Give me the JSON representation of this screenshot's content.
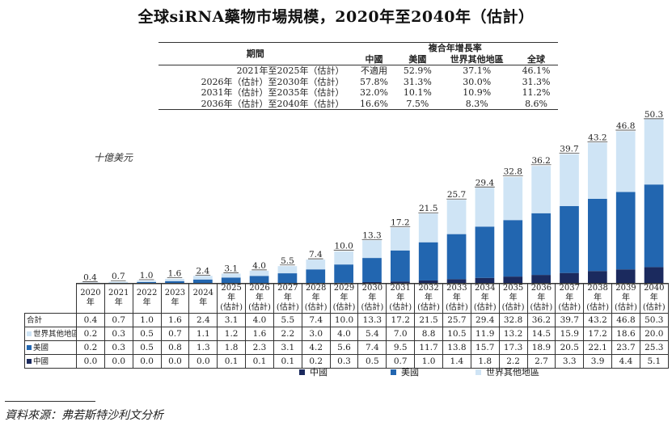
{
  "title": "全球siRNA藥物市場規模，2020年至2040年（估計）",
  "cagr_table": {
    "period_header": "期間",
    "group_header": "複合年增長率",
    "columns": [
      "中國",
      "美國",
      "世界其他地區",
      "全球"
    ],
    "rows": [
      {
        "period": "2021年至2025年（估計）",
        "values": [
          "不適用",
          "52.9%",
          "37.1%",
          "46.1%"
        ]
      },
      {
        "period": "2026年（估計）至2030年（估計）",
        "values": [
          "57.8%",
          "31.3%",
          "30.0%",
          "31.3%"
        ]
      },
      {
        "period": "2031年（估計）至2035年（估計）",
        "values": [
          "32.0%",
          "10.1%",
          "10.9%",
          "11.2%"
        ]
      },
      {
        "period": "2036年（估計）至2040年（估計）",
        "values": [
          "16.6%",
          "7.5%",
          "8.3%",
          "8.6%"
        ]
      }
    ]
  },
  "unit_label": "十億美元",
  "chart_data": {
    "type": "bar",
    "stacked": true,
    "categories": [
      "2020年",
      "2021年",
      "2022年",
      "2023年",
      "2024年",
      "2025年（估計）",
      "2026年（估計）",
      "2027年（估計）",
      "2028年（估計）",
      "2029年（估計）",
      "2030年（估計）",
      "2031年（估計）",
      "2032年（估計）",
      "2033年（估計）",
      "2034年（估計）",
      "2035年（估計）",
      "2036年（估計）",
      "2037年（估計）",
      "2038年（估計）",
      "2039年（估計）",
      "2040年（估計）"
    ],
    "category_lines": [
      [
        "2020年"
      ],
      [
        "2021年"
      ],
      [
        "2022年"
      ],
      [
        "2023年"
      ],
      [
        "2024年"
      ],
      [
        "2025年",
        "(估計)"
      ],
      [
        "2026年",
        "(估計)"
      ],
      [
        "2027年",
        "(估計)"
      ],
      [
        "2028年",
        "(估計)"
      ],
      [
        "2029年",
        "(估計)"
      ],
      [
        "2030年",
        "(估計)"
      ],
      [
        "2031年",
        "(估計)"
      ],
      [
        "2032年",
        "(估計)"
      ],
      [
        "2033年",
        "(估計)"
      ],
      [
        "2034年",
        "(估計)"
      ],
      [
        "2035年",
        "(估計)"
      ],
      [
        "2036年",
        "(估計)"
      ],
      [
        "2037年",
        "(估計)"
      ],
      [
        "2038年",
        "(估計)"
      ],
      [
        "2039年",
        "(估計)"
      ],
      [
        "2040年",
        "(估計)"
      ]
    ],
    "series": [
      {
        "name": "中國",
        "color": "#1b2a5e",
        "values": [
          0.0,
          0.0,
          0.0,
          0.0,
          0.0,
          0.1,
          0.1,
          0.1,
          0.2,
          0.3,
          0.5,
          0.7,
          1.0,
          1.4,
          1.8,
          2.2,
          2.7,
          3.3,
          3.9,
          4.4,
          5.1
        ]
      },
      {
        "name": "美國",
        "color": "#2266b0",
        "values": [
          0.2,
          0.3,
          0.5,
          0.8,
          1.3,
          1.8,
          2.3,
          3.1,
          4.2,
          5.6,
          7.4,
          9.5,
          11.7,
          13.8,
          15.7,
          17.3,
          18.9,
          20.5,
          22.1,
          23.7,
          25.3
        ]
      },
      {
        "name": "世界其他地區",
        "color": "#cfe4f5",
        "values": [
          0.2,
          0.3,
          0.5,
          0.7,
          1.1,
          1.2,
          1.6,
          2.2,
          3.0,
          4.0,
          5.4,
          7.0,
          8.8,
          10.5,
          11.9,
          13.2,
          14.5,
          15.9,
          17.2,
          18.6,
          20.0
        ]
      }
    ],
    "totals": [
      0.4,
      0.7,
      1.0,
      1.6,
      2.4,
      3.1,
      4.0,
      5.5,
      7.4,
      10.0,
      13.3,
      17.2,
      21.5,
      25.7,
      29.4,
      32.8,
      36.2,
      39.7,
      43.2,
      46.8,
      50.3
    ],
    "total_labels": [
      "0.4",
      "0.7",
      "1.0",
      "1.6",
      "2.4",
      "3.1",
      "4.0",
      "5.5",
      "7.4",
      "10.0",
      "13.3",
      "17.2",
      "21.5",
      "25.7",
      "29.4",
      "32.8",
      "36.2",
      "39.7",
      "43.2",
      "46.8",
      "50.3"
    ],
    "ylabel": "十億美元",
    "ylim": [
      0,
      52
    ],
    "grid": false,
    "legend_position": "bottom"
  },
  "data_table": {
    "rows": [
      {
        "label": "合計",
        "values": [
          "0.4",
          "0.7",
          "1.0",
          "1.6",
          "2.4",
          "3.1",
          "4.0",
          "5.5",
          "7.4",
          "10.0",
          "13.3",
          "17.2",
          "21.5",
          "25.7",
          "29.4",
          "32.8",
          "36.2",
          "39.7",
          "43.2",
          "46.8",
          "50.3"
        ]
      },
      {
        "label": "世界其他地區",
        "color": "#cfe4f5",
        "values": [
          "0.2",
          "0.3",
          "0.5",
          "0.7",
          "1.1",
          "1.2",
          "1.6",
          "2.2",
          "3.0",
          "4.0",
          "5.4",
          "7.0",
          "8.8",
          "10.5",
          "11.9",
          "13.2",
          "14.5",
          "15.9",
          "17.2",
          "18.6",
          "20.0"
        ]
      },
      {
        "label": "美國",
        "color": "#2266b0",
        "values": [
          "0.2",
          "0.3",
          "0.5",
          "0.8",
          "1.3",
          "1.8",
          "2.3",
          "3.1",
          "4.2",
          "5.6",
          "7.4",
          "9.5",
          "11.7",
          "13.8",
          "15.7",
          "17.3",
          "18.9",
          "20.5",
          "22.1",
          "23.7",
          "25.3"
        ]
      },
      {
        "label": "中國",
        "color": "#1b2a5e",
        "values": [
          "0.0",
          "0.0",
          "0.0",
          "0.0",
          "0.0",
          "0.1",
          "0.1",
          "0.1",
          "0.2",
          "0.3",
          "0.5",
          "0.7",
          "1.0",
          "1.4",
          "1.8",
          "2.2",
          "2.7",
          "3.3",
          "3.9",
          "4.4",
          "5.1"
        ]
      }
    ]
  },
  "legend": [
    {
      "label": "中國",
      "color": "#1b2a5e"
    },
    {
      "label": "美國",
      "color": "#2266b0"
    },
    {
      "label": "世界其他地區",
      "color": "#cfe4f5"
    }
  ],
  "source": "資料來源：弗若斯特沙利文分析"
}
